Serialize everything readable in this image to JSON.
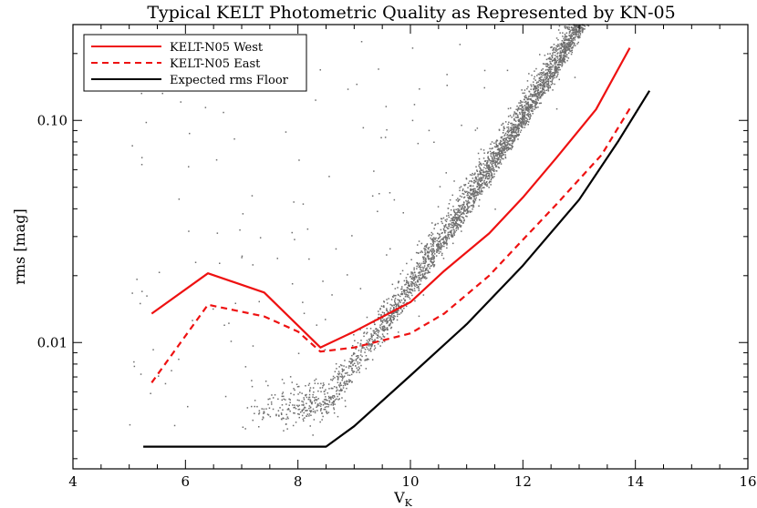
{
  "chart_data": {
    "type": "scatter",
    "title": "Typical KELT Photometric Quality as Represented by KN-05",
    "xlabel_main": "V",
    "xlabel_sub": "K",
    "ylabel": "rms [mag]",
    "xlim": [
      4,
      16
    ],
    "ylim": [
      0.0027,
      0.27
    ],
    "yscale": "log",
    "x_ticks": [
      4,
      6,
      8,
      10,
      12,
      14,
      16
    ],
    "x_tick_labels": [
      "4",
      "6",
      "8",
      "10",
      "12",
      "14",
      "16"
    ],
    "y_tick_values": [
      0.01,
      0.1
    ],
    "y_tick_labels": [
      "0.01",
      "0.10"
    ],
    "scatter_color": "#6e6e6e",
    "series": [
      {
        "name": "KELT-N05 West",
        "style": "solid",
        "color": "#ee1111",
        "x": [
          5.4,
          6.4,
          7.4,
          8.4,
          9.0,
          10.0,
          10.6,
          11.4,
          12.0,
          12.6,
          13.3,
          13.9
        ],
        "y": [
          0.0135,
          0.0205,
          0.0168,
          0.0095,
          0.0112,
          0.0152,
          0.021,
          0.031,
          0.045,
          0.068,
          0.112,
          0.212
        ]
      },
      {
        "name": "KELT-N05 East",
        "style": "dashed",
        "color": "#ee1111",
        "x": [
          5.4,
          6.4,
          7.4,
          8.0,
          8.4,
          9.0,
          10.0,
          10.6,
          11.4,
          12.0,
          12.6,
          13.4,
          13.9
        ],
        "y": [
          0.0066,
          0.0148,
          0.0131,
          0.0112,
          0.0091,
          0.0095,
          0.011,
          0.0135,
          0.02,
          0.029,
          0.042,
          0.07,
          0.113
        ]
      },
      {
        "name": "Expected rms Floor",
        "style": "solid",
        "color": "#000000",
        "x": [
          5.25,
          8.5,
          9.0,
          10.0,
          11.0,
          12.0,
          13.0,
          13.7,
          14.25
        ],
        "y": [
          0.0034,
          0.0034,
          0.0042,
          0.0071,
          0.0121,
          0.0222,
          0.044,
          0.081,
          0.136
        ]
      }
    ]
  }
}
